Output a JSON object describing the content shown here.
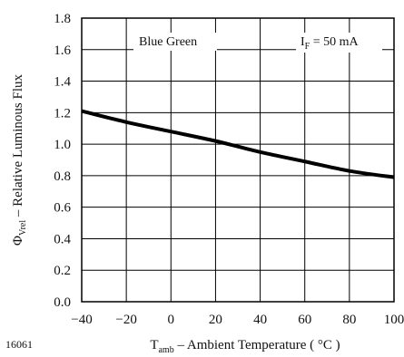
{
  "chart_data": {
    "type": "line",
    "figure_id": "16061",
    "series": [
      {
        "name": "",
        "x": [
          -40,
          -20,
          0,
          20,
          40,
          60,
          80,
          100
        ],
        "y": [
          1.21,
          1.14,
          1.08,
          1.02,
          0.95,
          0.89,
          0.83,
          0.79
        ]
      }
    ],
    "xlim": [
      -40,
      100
    ],
    "ylim": [
      0.0,
      1.8
    ],
    "x_ticks": [
      -40,
      -20,
      0,
      20,
      40,
      60,
      80,
      100
    ],
    "y_ticks": [
      0.0,
      0.2,
      0.4,
      0.6,
      0.8,
      1.0,
      1.2,
      1.4,
      1.6,
      1.8
    ],
    "grid": true,
    "xlabel": {
      "symbol": "T",
      "subscript": "amb",
      "text": " – Ambient Temperature ( °C )"
    },
    "ylabel": {
      "symbol": "Φ",
      "subscript": "Vrel",
      "text": " – Relative Luminous Flux"
    },
    "annotations": {
      "color_label": "Blue Green",
      "current_symbol": "I",
      "current_subscript": "F",
      "current_text": " = 50 mA"
    },
    "line_color": "#000000"
  }
}
